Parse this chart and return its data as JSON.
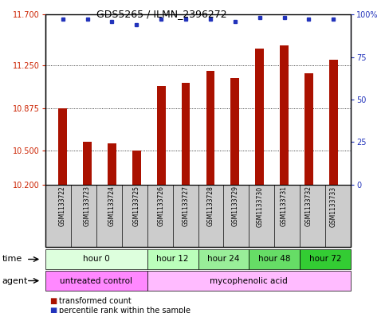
{
  "title": "GDS5265 / ILMN_2396272",
  "samples": [
    "GSM1133722",
    "GSM1133723",
    "GSM1133724",
    "GSM1133725",
    "GSM1133726",
    "GSM1133727",
    "GSM1133728",
    "GSM1133729",
    "GSM1133730",
    "GSM1133731",
    "GSM1133732",
    "GSM1133733"
  ],
  "bar_values": [
    10.875,
    10.58,
    10.565,
    10.5,
    11.07,
    11.1,
    11.2,
    11.14,
    11.4,
    11.425,
    11.18,
    11.3
  ],
  "percentile_values": [
    97,
    97,
    96,
    94,
    97,
    97,
    97,
    96,
    98,
    98,
    97,
    97
  ],
  "bar_color": "#aa1100",
  "percentile_color": "#2233bb",
  "ylim_left": [
    10.2,
    11.7
  ],
  "ylim_right": [
    0,
    100
  ],
  "yticks_left": [
    10.2,
    10.5,
    10.875,
    11.25,
    11.7
  ],
  "yticks_right": [
    0,
    25,
    50,
    75,
    100
  ],
  "ylabel_left_color": "#cc2200",
  "ylabel_right_color": "#2233bb",
  "time_groups": [
    {
      "label": "hour 0",
      "start": 0,
      "end": 4,
      "color": "#ddffdd"
    },
    {
      "label": "hour 12",
      "start": 4,
      "end": 6,
      "color": "#bbffbb"
    },
    {
      "label": "hour 24",
      "start": 6,
      "end": 8,
      "color": "#99ee99"
    },
    {
      "label": "hour 48",
      "start": 8,
      "end": 10,
      "color": "#66dd66"
    },
    {
      "label": "hour 72",
      "start": 10,
      "end": 12,
      "color": "#33cc33"
    }
  ],
  "agent_groups": [
    {
      "label": "untreated control",
      "start": 0,
      "end": 4,
      "color": "#ff88ff"
    },
    {
      "label": "mycophenolic acid",
      "start": 4,
      "end": 12,
      "color": "#ffbbff"
    }
  ],
  "legend_red_label": "transformed count",
  "legend_blue_label": "percentile rank within the sample",
  "time_label": "time",
  "agent_label": "agent",
  "bar_bottom": 10.2,
  "plot_bg_color": "#ffffff",
  "xtick_bg_color": "#cccccc"
}
